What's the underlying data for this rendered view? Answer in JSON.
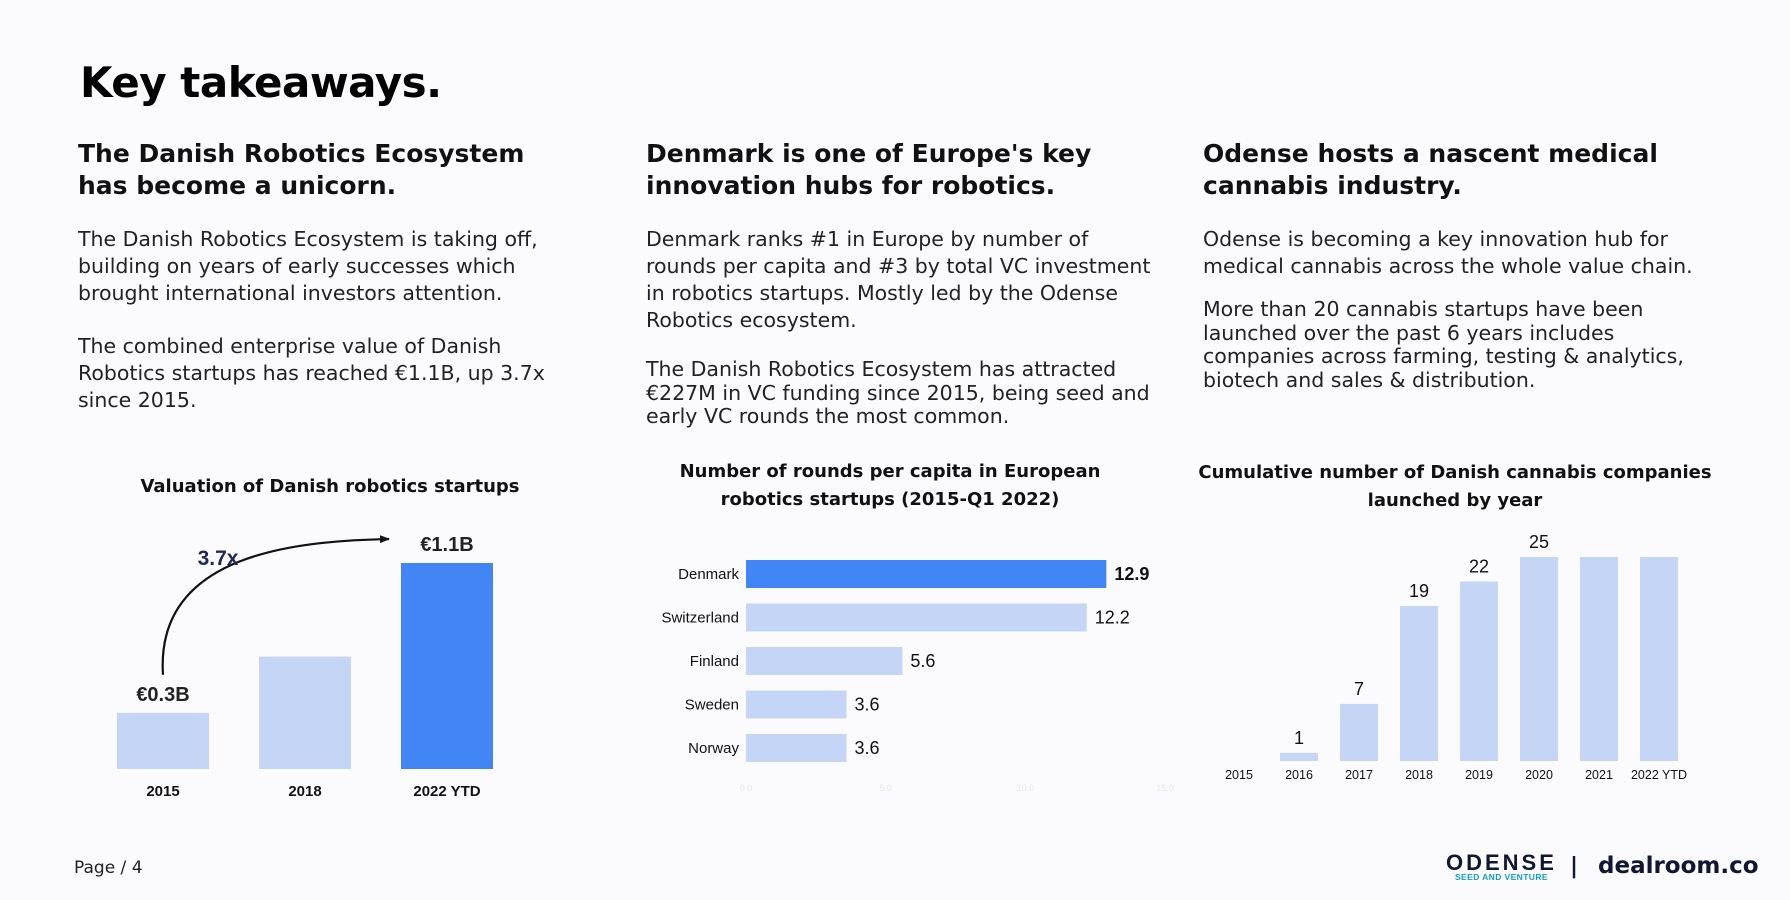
{
  "page": {
    "title": "Key takeaways.",
    "footer_page": "Page / 4",
    "logo_main": "ODENSE",
    "logo_sub": "SEED AND VENTURE",
    "footer_separator": "|",
    "dealroom_logo": "dealroom.co"
  },
  "columns": [
    {
      "heading": "The Danish Robotics Ecosystem has become a unicorn.",
      "paragraphs": [
        "The Danish Robotics Ecosystem is taking off, building on years of early successes which brought international investors attention.",
        "The combined enterprise value of Danish Robotics startups has reached €1.1B, up 3.7x since 2015."
      ]
    },
    {
      "heading": "Denmark is one of Europe's key innovation hubs for robotics.",
      "paragraphs": [
        "Denmark ranks #1 in Europe by number of rounds per capita and #3 by total VC investment in robotics startups. Mostly led by the Odense Robotics ecosystem.",
        "The Danish Robotics Ecosystem has attracted €227M in VC funding since 2015, being seed and early VC rounds the most common."
      ]
    },
    {
      "heading": "Odense hosts a nascent medical cannabis industry.",
      "paragraphs": [
        "Odense is becoming a key innovation hub for medical cannabis across the whole value chain.",
        "More than 20 cannabis startups have been launched over the past 6 years includes companies across farming, testing & analytics, biotech and sales & distribution."
      ]
    }
  ],
  "chart_data": [
    {
      "type": "bar",
      "title": "Valuation of Danish robotics startups",
      "categories": [
        "2015",
        "2018",
        "2022 YTD"
      ],
      "values": [
        0.3,
        0.6,
        1.1
      ],
      "unit": "€B",
      "data_labels": [
        "€0.3B",
        "",
        "€1.1B"
      ],
      "annotation": "3.7x",
      "highlight_index": 2,
      "ylim": [
        0,
        1.1
      ],
      "colors": {
        "base": "#c5d5f5",
        "highlight": "#4285f4"
      }
    },
    {
      "type": "bar",
      "orientation": "horizontal",
      "title": "Number of rounds per capita in European robotics startups (2015-Q1 2022)",
      "categories": [
        "Denmark",
        "Switzerland",
        "Finland",
        "Sweden",
        "Norway"
      ],
      "values": [
        12.9,
        12.2,
        5.6,
        3.6,
        3.6
      ],
      "data_labels": [
        "12.9",
        "12.2",
        "5.6",
        "3.6",
        "3.6"
      ],
      "axis_ticks": [
        0.0,
        5.0,
        10.0,
        15.0
      ],
      "axis_tick_labels": [
        "0.0",
        "5.0",
        "10.0",
        "15.0"
      ],
      "xlim": [
        0,
        15
      ],
      "highlight_index": 0,
      "colors": {
        "base": "#c5d5f5",
        "highlight": "#4285f4"
      }
    },
    {
      "type": "bar",
      "title": "Cumulative number of Danish cannabis companies launched by year",
      "categories": [
        "2015",
        "2016",
        "2017",
        "2018",
        "2019",
        "2020",
        "2021",
        "2022 YTD"
      ],
      "values": [
        0,
        1,
        7,
        19,
        22,
        25,
        25,
        25
      ],
      "data_labels": [
        "",
        "1",
        "7",
        "19",
        "22",
        "25",
        "",
        ""
      ],
      "ylim": [
        0,
        25
      ],
      "colors": {
        "base": "#c5d5f5"
      }
    }
  ]
}
